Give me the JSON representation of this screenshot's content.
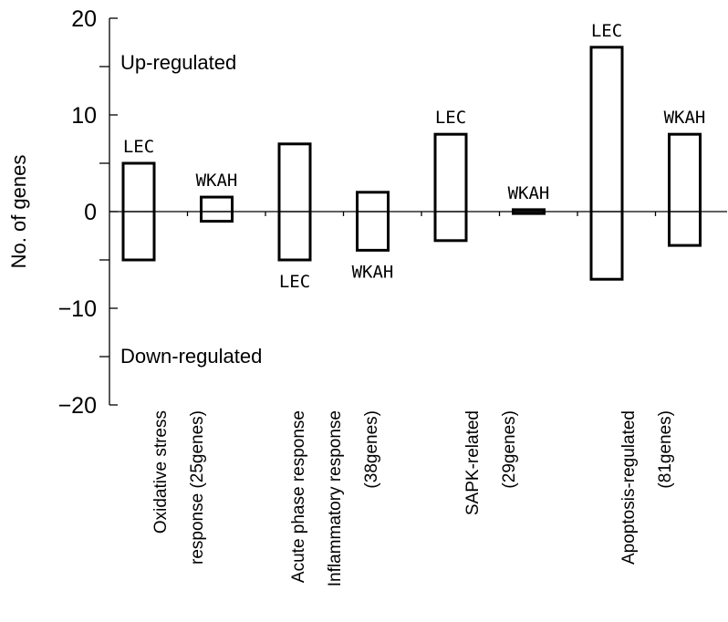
{
  "chart_data": {
    "type": "bar",
    "ylabel": "No. of genes",
    "ylim": [
      -20,
      20
    ],
    "yticks": [
      -20,
      -10,
      0,
      10,
      20
    ],
    "annotations": [
      "Up-regulated",
      "Down-regulated"
    ],
    "categories": [
      {
        "lines": [
          "Oxidative stress",
          "response (25genes)"
        ]
      },
      {
        "lines": [
          "Acute phase response",
          "Inflammatory response",
          "(38genes)"
        ]
      },
      {
        "lines": [
          "SAPK-related",
          "(29genes)"
        ]
      },
      {
        "lines": [
          "Apoptosis-regulated",
          "(81genes)"
        ]
      }
    ],
    "bars": [
      {
        "category": 0,
        "series": "LEC",
        "up": 5,
        "down": -5,
        "label_pos": "above"
      },
      {
        "category": 0,
        "series": "WKAH",
        "up": 1.5,
        "down": -1,
        "label_pos": "above"
      },
      {
        "category": 1,
        "series": "LEC",
        "up": 7,
        "down": -5,
        "label_pos": "below"
      },
      {
        "category": 1,
        "series": "WKAH",
        "up": 2,
        "down": -4,
        "label_pos": "below"
      },
      {
        "category": 2,
        "series": "LEC",
        "up": 8,
        "down": -3,
        "label_pos": "above"
      },
      {
        "category": 2,
        "series": "WKAH",
        "up": 0.2,
        "down": -0.2,
        "label_pos": "above"
      },
      {
        "category": 3,
        "series": "LEC",
        "up": 17,
        "down": -7,
        "label_pos": "above"
      },
      {
        "category": 3,
        "series": "WKAH",
        "up": 8,
        "down": -3.5,
        "label_pos": "above"
      }
    ]
  }
}
